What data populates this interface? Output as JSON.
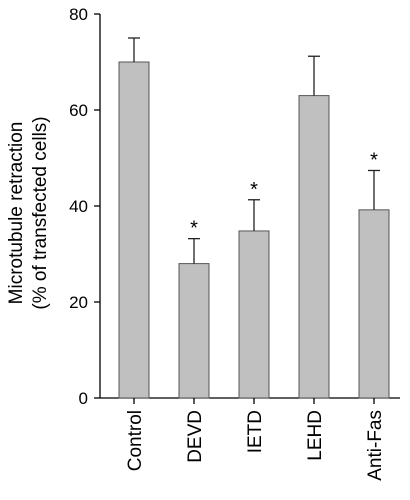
{
  "chart_data": {
    "type": "bar",
    "categories": [
      "Control",
      "DEVD",
      "IETD",
      "LEHD",
      "Anti-Fas"
    ],
    "values": [
      70,
      28,
      34.8,
      63,
      39.2
    ],
    "errors": [
      5,
      5.2,
      6.5,
      8.2,
      8.2
    ],
    "annotations": [
      "",
      "*",
      "*",
      "",
      "*"
    ],
    "ylabel_line1": "Microtubule retraction",
    "ylabel_line2": "(% of transfected cells)",
    "ylim": [
      0,
      80
    ],
    "yticks": [
      0,
      20,
      40,
      60,
      80
    ],
    "grid": false,
    "colors": {
      "bar": "#c0c0c0",
      "bar_edge": "#555555",
      "error": "#222222"
    }
  }
}
